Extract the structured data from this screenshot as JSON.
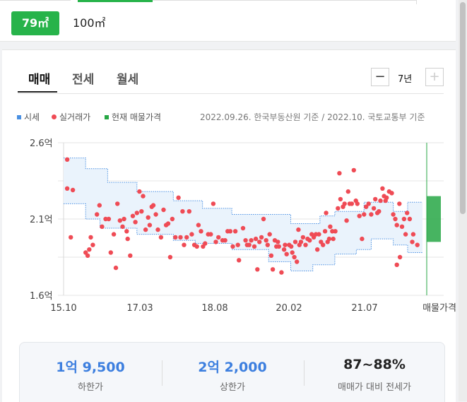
{
  "area": {
    "selected": "79㎡",
    "other": "100㎡"
  },
  "tabs": [
    "매매",
    "전세",
    "월세"
  ],
  "period": {
    "label": "7년",
    "minus": "−",
    "plus": "+"
  },
  "legend": [
    {
      "label": "시세",
      "color": "#4a90e2",
      "shape": "square"
    },
    {
      "label": "실거래가",
      "color": "#ef4b55",
      "shape": "dot"
    },
    {
      "label": "현재 매물가격",
      "color": "#27a745",
      "shape": "square"
    }
  ],
  "note": "2022.09.26. 한국부동산원 기준 / 2022.10. 국토교통부 기준",
  "chart_data": {
    "type": "scatter",
    "y_ticks": [
      "2.6억",
      "2.1억",
      "1.6억"
    ],
    "x_ticks": [
      "15.10",
      "17.03",
      "18.08",
      "20.02",
      "21.07",
      "매물가격"
    ],
    "ylim": [
      1.6,
      2.6
    ],
    "band_color": "#4a90e2",
    "point_color": "#ef4b55",
    "listing_range": {
      "low": 1.95,
      "high": 2.25,
      "color": "#27a745"
    },
    "band_upper": [
      [
        0,
        2.5
      ],
      [
        0.43,
        2.5
      ],
      [
        0.43,
        2.43
      ],
      [
        0.86,
        2.43
      ],
      [
        0.86,
        2.34
      ],
      [
        1.43,
        2.34
      ],
      [
        1.43,
        2.28
      ],
      [
        2.14,
        2.28
      ],
      [
        2.14,
        2.22
      ],
      [
        2.71,
        2.22
      ],
      [
        2.71,
        2.17
      ],
      [
        3.28,
        2.17
      ],
      [
        3.28,
        2.13
      ],
      [
        4.43,
        2.13
      ],
      [
        4.43,
        2.07
      ],
      [
        5.0,
        2.07
      ],
      [
        5.0,
        2.12
      ],
      [
        5.29,
        2.12
      ],
      [
        5.29,
        2.15
      ],
      [
        5.86,
        2.15
      ],
      [
        5.86,
        2.21
      ],
      [
        6.43,
        2.21
      ],
      [
        6.43,
        2.15
      ],
      [
        6.71,
        2.15
      ],
      [
        6.71,
        2.21
      ],
      [
        7.0,
        2.21
      ]
    ],
    "band_lower": [
      [
        0,
        2.2
      ],
      [
        0.43,
        2.2
      ],
      [
        0.43,
        2.1
      ],
      [
        0.71,
        2.1
      ],
      [
        0.71,
        2.04
      ],
      [
        1.43,
        2.04
      ],
      [
        1.43,
        2.0
      ],
      [
        2.14,
        2.0
      ],
      [
        2.14,
        1.96
      ],
      [
        2.57,
        1.96
      ],
      [
        2.57,
        1.94
      ],
      [
        3.28,
        1.94
      ],
      [
        3.28,
        1.9
      ],
      [
        4.0,
        1.9
      ],
      [
        4.0,
        1.82
      ],
      [
        4.43,
        1.82
      ],
      [
        4.43,
        1.76
      ],
      [
        4.86,
        1.76
      ],
      [
        4.86,
        1.8
      ],
      [
        5.29,
        1.8
      ],
      [
        5.29,
        1.87
      ],
      [
        5.71,
        1.87
      ],
      [
        5.71,
        1.9
      ],
      [
        6.0,
        1.9
      ],
      [
        6.0,
        1.97
      ],
      [
        6.43,
        1.97
      ],
      [
        6.43,
        1.93
      ],
      [
        6.71,
        1.93
      ],
      [
        6.71,
        1.88
      ],
      [
        7.0,
        1.88
      ]
    ],
    "points": [
      [
        0.07,
        2.49
      ],
      [
        0.07,
        2.3
      ],
      [
        0.18,
        2.29
      ],
      [
        0.14,
        1.98
      ],
      [
        0.43,
        1.88
      ],
      [
        0.47,
        1.86
      ],
      [
        0.5,
        1.9
      ],
      [
        0.53,
        1.98
      ],
      [
        0.57,
        1.93
      ],
      [
        0.65,
        2.13
      ],
      [
        0.7,
        2.19
      ],
      [
        0.75,
        2.05
      ],
      [
        0.82,
        2.1
      ],
      [
        0.88,
        2.1
      ],
      [
        0.92,
        1.88
      ],
      [
        0.98,
        2.0
      ],
      [
        1.02,
        1.78
      ],
      [
        1.05,
        2.2
      ],
      [
        1.1,
        2.09
      ],
      [
        1.15,
        2.05
      ],
      [
        1.18,
        2.1
      ],
      [
        1.23,
        2.02
      ],
      [
        1.25,
        1.97
      ],
      [
        1.3,
        1.86
      ],
      [
        1.35,
        2.12
      ],
      [
        1.4,
        2.08
      ],
      [
        1.43,
        2.14
      ],
      [
        1.48,
        2.28
      ],
      [
        1.52,
        2.15
      ],
      [
        1.55,
        2.25
      ],
      [
        1.6,
        2.03
      ],
      [
        1.65,
        2.11
      ],
      [
        1.68,
        2.06
      ],
      [
        1.72,
        2.18
      ],
      [
        1.75,
        2.19
      ],
      [
        1.8,
        2.13
      ],
      [
        1.84,
        2.03
      ],
      [
        1.9,
        1.98
      ],
      [
        1.95,
        2.16
      ],
      [
        2.0,
        2.06
      ],
      [
        2.04,
        2.07
      ],
      [
        2.08,
        1.85
      ],
      [
        2.12,
        2.1
      ],
      [
        2.18,
        1.98
      ],
      [
        2.24,
        2.24
      ],
      [
        2.28,
        1.98
      ],
      [
        2.32,
        2.15
      ],
      [
        2.35,
        1.93
      ],
      [
        2.4,
        1.98
      ],
      [
        2.45,
        2.15
      ],
      [
        2.5,
        2.0
      ],
      [
        2.55,
        1.93
      ],
      [
        2.6,
        1.92
      ],
      [
        2.63,
        2.06
      ],
      [
        2.68,
        2.02
      ],
      [
        2.72,
        1.92
      ],
      [
        2.76,
        1.94
      ],
      [
        2.82,
        2.0
      ],
      [
        2.87,
        2.0
      ],
      [
        2.92,
        2.2
      ],
      [
        2.97,
        1.95
      ],
      [
        3.02,
        1.98
      ],
      [
        3.1,
        1.96
      ],
      [
        3.15,
        1.96
      ],
      [
        3.2,
        2.02
      ],
      [
        3.25,
        2.02
      ],
      [
        3.3,
        1.92
      ],
      [
        3.35,
        2.02
      ],
      [
        3.4,
        1.93
      ],
      [
        3.42,
        1.83
      ],
      [
        3.5,
        2.04
      ],
      [
        3.55,
        1.96
      ],
      [
        3.58,
        1.93
      ],
      [
        3.62,
        1.93
      ],
      [
        3.66,
        1.96
      ],
      [
        3.72,
        1.92
      ],
      [
        3.75,
        1.97
      ],
      [
        3.78,
        1.77
      ],
      [
        3.82,
        1.95
      ],
      [
        3.86,
        1.98
      ],
      [
        3.9,
        2.1
      ],
      [
        3.95,
        1.96
      ],
      [
        3.98,
        1.93
      ],
      [
        4.02,
        2.0
      ],
      [
        4.05,
        1.86
      ],
      [
        4.08,
        1.77
      ],
      [
        4.12,
        1.96
      ],
      [
        4.15,
        1.92
      ],
      [
        4.18,
        1.95
      ],
      [
        4.2,
        1.92
      ],
      [
        4.25,
        1.75
      ],
      [
        4.3,
        1.9
      ],
      [
        4.32,
        1.93
      ],
      [
        4.35,
        1.87
      ],
      [
        4.4,
        1.93
      ],
      [
        4.44,
        1.92
      ],
      [
        4.46,
        1.88
      ],
      [
        4.5,
        1.85
      ],
      [
        4.52,
        1.95
      ],
      [
        4.55,
        1.82
      ],
      [
        4.58,
        2.03
      ],
      [
        4.6,
        1.93
      ],
      [
        4.63,
        1.95
      ],
      [
        4.67,
        1.98
      ],
      [
        4.72,
        1.93
      ],
      [
        4.76,
        1.97
      ],
      [
        4.8,
        1.96
      ],
      [
        4.84,
        2.0
      ],
      [
        4.88,
        1.98
      ],
      [
        4.92,
        2.0
      ],
      [
        4.95,
        1.9
      ],
      [
        4.98,
        2.0
      ],
      [
        5.02,
        1.95
      ],
      [
        5.06,
        1.93
      ],
      [
        5.1,
        2.02
      ],
      [
        5.12,
        2.14
      ],
      [
        5.15,
        1.95
      ],
      [
        5.18,
        1.97
      ],
      [
        5.2,
        2.05
      ],
      [
        5.24,
        2.02
      ],
      [
        5.26,
        1.97
      ],
      [
        5.3,
        2.02
      ],
      [
        5.35,
        2.17
      ],
      [
        5.38,
        2.4
      ],
      [
        5.4,
        2.23
      ],
      [
        5.45,
        2.18
      ],
      [
        5.48,
        2.2
      ],
      [
        5.52,
        2.09
      ],
      [
        5.55,
        2.28
      ],
      [
        5.58,
        2.2
      ],
      [
        5.62,
        2.2
      ],
      [
        5.66,
        2.42
      ],
      [
        5.7,
        2.22
      ],
      [
        5.73,
        2.2
      ],
      [
        5.77,
        2.12
      ],
      [
        5.82,
        1.97
      ],
      [
        5.86,
        2.13
      ],
      [
        5.9,
        2.18
      ],
      [
        5.95,
        2.2
      ],
      [
        6.0,
        2.13
      ],
      [
        6.05,
        2.17
      ],
      [
        6.08,
        2.23
      ],
      [
        6.12,
        2.14
      ],
      [
        6.15,
        2.15
      ],
      [
        6.18,
        2.22
      ],
      [
        6.22,
        2.3
      ],
      [
        6.25,
        2.25
      ],
      [
        6.28,
        2.22
      ],
      [
        6.3,
        2.24
      ],
      [
        6.35,
        2.28
      ],
      [
        6.4,
        2.27
      ],
      [
        6.43,
        2.13
      ],
      [
        6.47,
        2.1
      ],
      [
        6.5,
        2.06
      ],
      [
        6.55,
        2.2
      ],
      [
        6.6,
        2.05
      ],
      [
        6.64,
        2.1
      ],
      [
        6.67,
        2.0
      ],
      [
        6.7,
        2.14
      ],
      [
        6.75,
        2.1
      ],
      [
        6.8,
        1.95
      ],
      [
        6.82,
        2.0
      ],
      [
        6.5,
        1.8
      ],
      [
        6.56,
        1.85
      ],
      [
        6.9,
        1.93
      ]
    ]
  },
  "stats": [
    {
      "value": "1억 9,500",
      "label": "하한가",
      "color": "#3d7fdf"
    },
    {
      "value": "2억 2,000",
      "label": "상한가",
      "color": "#3d7fdf"
    },
    {
      "value": "87~88%",
      "label": "매매가 대비 전세가",
      "color": "#222"
    }
  ]
}
